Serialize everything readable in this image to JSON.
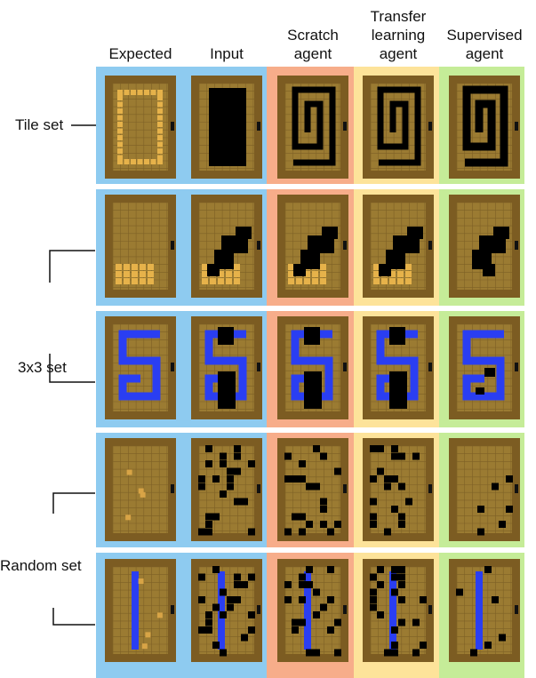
{
  "columns": [
    {
      "lines": [
        "Expected"
      ]
    },
    {
      "lines": [
        "Input"
      ]
    },
    {
      "lines": [
        "Scratch",
        "agent"
      ]
    },
    {
      "lines": [
        "Transfer",
        "learning",
        "agent"
      ]
    },
    {
      "lines": [
        "Supervised",
        "agent"
      ]
    }
  ],
  "rows": [
    {
      "label": "Tile set"
    },
    {
      "label": "3x3 set"
    },
    {
      "label": "Random set"
    }
  ]
}
